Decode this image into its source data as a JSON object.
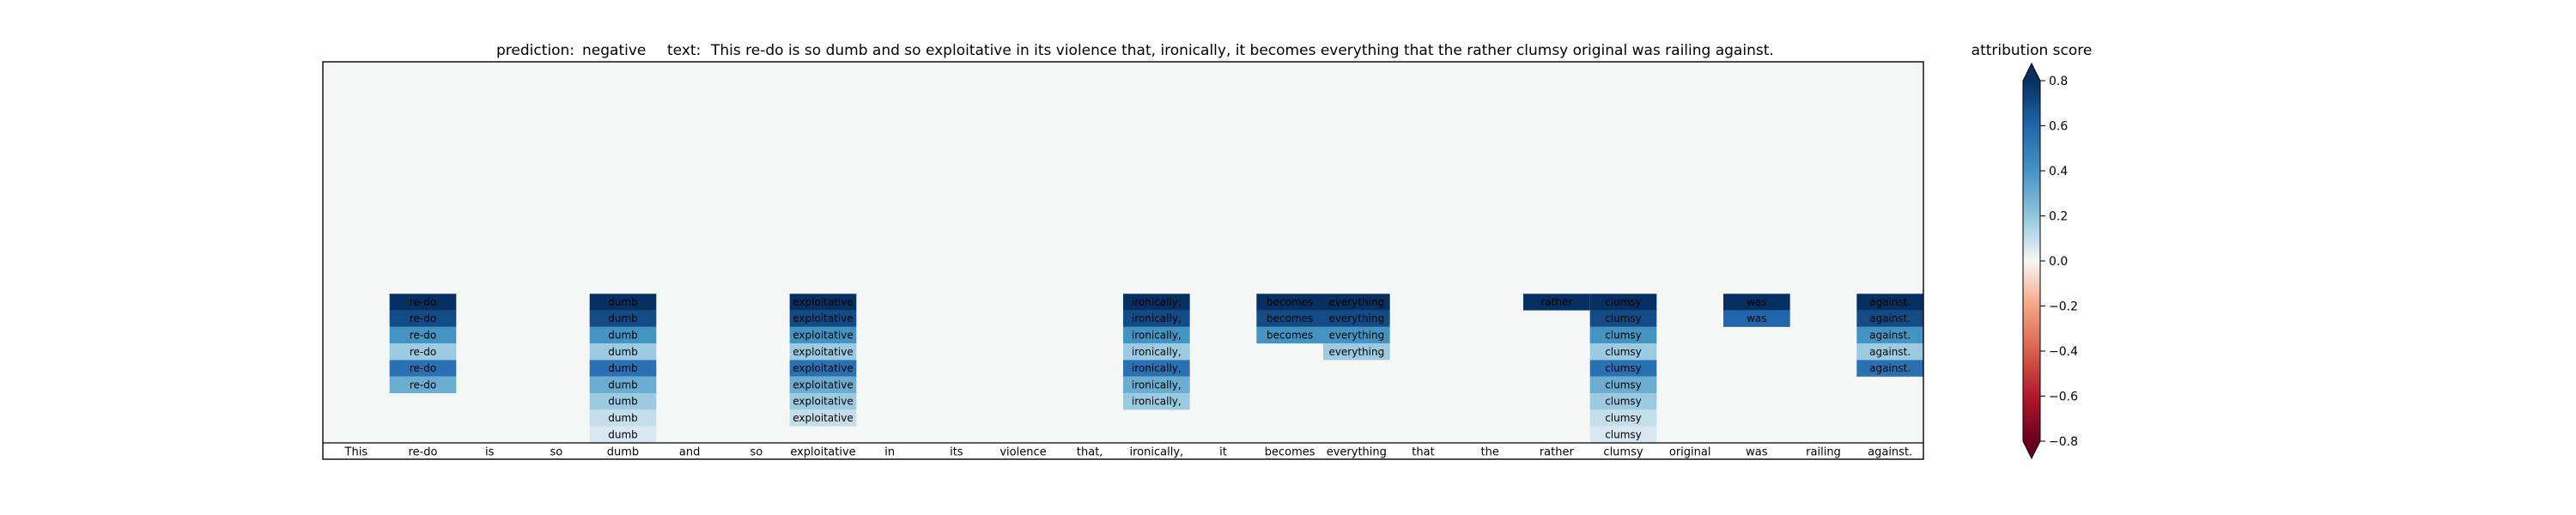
{
  "chart_data": {
    "type": "heatmap",
    "title": {
      "prediction_label": "prediction:",
      "prediction_value": "negative",
      "text_label": "text:",
      "text_value": "This re-do is so dumb and so exploitative in its violence that, ironically, it becomes everything that the rather clumsy original was railing against."
    },
    "tokens": [
      "This",
      "re-do",
      "is",
      "so",
      "dumb",
      "and",
      "so",
      "exploitative",
      "in",
      "its",
      "violence",
      "that,",
      "ironically,",
      "it",
      "becomes",
      "everything",
      "that",
      "the",
      "rather",
      "clumsy",
      "original",
      "was",
      "railing",
      "against."
    ],
    "num_layers": 23,
    "cells": [
      {
        "token": 1,
        "scores": [
          0.8,
          0.7,
          0.4,
          0.18,
          0.55,
          0.3
        ]
      },
      {
        "token": 4,
        "scores": [
          0.8,
          0.7,
          0.4,
          0.18,
          0.55,
          0.3,
          0.18,
          0.1,
          0.06
        ]
      },
      {
        "token": 7,
        "scores": [
          0.8,
          0.7,
          0.4,
          0.18,
          0.55,
          0.3,
          0.18,
          0.1
        ]
      },
      {
        "token": 12,
        "scores": [
          0.8,
          0.7,
          0.4,
          0.18,
          0.55,
          0.3,
          0.18
        ]
      },
      {
        "token": 14,
        "scores": [
          0.8,
          0.7,
          0.4
        ]
      },
      {
        "token": 15,
        "scores": [
          0.8,
          0.7,
          0.4,
          0.18
        ]
      },
      {
        "token": 18,
        "scores": [
          0.8
        ]
      },
      {
        "token": 19,
        "scores": [
          0.8,
          0.7,
          0.4,
          0.18,
          0.55,
          0.3,
          0.18,
          0.1,
          0.06
        ]
      },
      {
        "token": 21,
        "scores": [
          0.8,
          0.6
        ]
      },
      {
        "token": 23,
        "scores": [
          0.8,
          0.7,
          0.4,
          0.18,
          0.55
        ]
      }
    ],
    "colorbar": {
      "title": "attribution score",
      "min": -0.8,
      "max": 0.8,
      "ticks": [
        0.8,
        0.6,
        0.4,
        0.2,
        0.0,
        -0.2,
        -0.4,
        -0.6,
        -0.8
      ],
      "tick_labels": [
        "0.8",
        "0.6",
        "0.4",
        "0.2",
        "0.0",
        "−0.2",
        "−0.4",
        "−0.6",
        "−0.8"
      ]
    },
    "colormap": "RdBu",
    "background_color": "#f5f7f6"
  }
}
